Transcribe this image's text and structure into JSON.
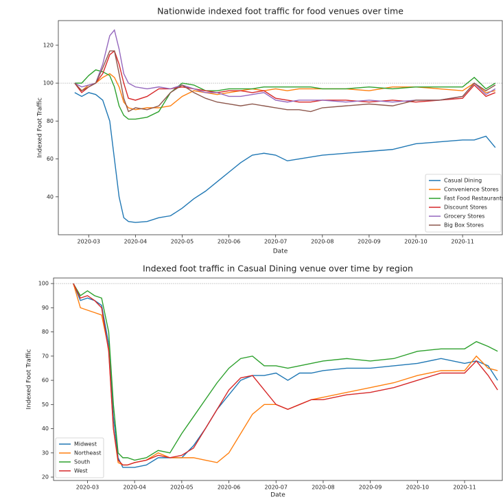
{
  "chart_data": [
    {
      "type": "line",
      "title": "Nationwide indexed foot traffic for food venues over time",
      "x_label": "Date",
      "y_label": "Indexed Foot Traffic",
      "x": [
        2.7,
        2.85,
        3.0,
        3.15,
        3.3,
        3.45,
        3.55,
        3.65,
        3.75,
        3.85,
        4.0,
        4.25,
        4.5,
        4.75,
        5.0,
        5.25,
        5.5,
        5.75,
        6.0,
        6.25,
        6.5,
        6.75,
        7.0,
        7.25,
        7.5,
        7.75,
        8.0,
        8.5,
        9.0,
        9.5,
        10.0,
        10.5,
        11.0,
        11.25,
        11.5,
        11.7
      ],
      "xlim": [
        2.35,
        11.85
      ],
      "xticks": [
        {
          "value": 3,
          "label": "2020-03"
        },
        {
          "value": 4,
          "label": "2020-04"
        },
        {
          "value": 5,
          "label": "2020-05"
        },
        {
          "value": 6,
          "label": "2020-06"
        },
        {
          "value": 7,
          "label": "2020-07"
        },
        {
          "value": 8,
          "label": "2020-08"
        },
        {
          "value": 9,
          "label": "2020-09"
        },
        {
          "value": 10,
          "label": "2020-10"
        },
        {
          "value": 11,
          "label": "2020-11"
        }
      ],
      "ylim": [
        20,
        133
      ],
      "yticks": [
        40,
        60,
        80,
        100,
        120
      ],
      "reference_line": 100,
      "legend": "lower right",
      "series": [
        {
          "name": "Casual Dining",
          "color": "#1f77b4",
          "values": [
            95,
            93,
            95,
            94,
            91,
            80,
            60,
            40,
            29,
            27,
            26.5,
            27,
            29,
            30,
            34,
            39,
            43,
            48,
            53,
            58,
            62,
            63,
            62,
            59,
            60,
            61,
            62,
            63,
            64,
            65,
            68,
            69,
            70,
            70,
            72,
            66
          ]
        },
        {
          "name": "Convenience Stores",
          "color": "#ff7f0e",
          "values": [
            100,
            96,
            99,
            100,
            103,
            105,
            103,
            98,
            90,
            87,
            86,
            87,
            87,
            88,
            93,
            96,
            95,
            94,
            95,
            96,
            97,
            96,
            97,
            96,
            97,
            97,
            97,
            97,
            96,
            98,
            98,
            97,
            96,
            100,
            95,
            96
          ]
        },
        {
          "name": "Fast Food Restaurants",
          "color": "#2ca02c",
          "values": [
            100,
            100,
            104,
            107,
            106,
            104,
            98,
            88,
            83,
            81,
            81,
            82,
            85,
            95,
            100,
            99,
            96,
            96,
            97,
            97,
            97,
            98,
            98,
            98,
            98,
            98,
            97,
            97,
            98,
            97,
            98,
            98,
            98,
            103,
            97,
            100
          ]
        },
        {
          "name": "Discount Stores",
          "color": "#d62728",
          "values": [
            100,
            95,
            98,
            100,
            105,
            115,
            117,
            110,
            100,
            92,
            91,
            93,
            97,
            97,
            98,
            97,
            96,
            95,
            96,
            96,
            95,
            96,
            92,
            91,
            90,
            90,
            91,
            91,
            90,
            91,
            90,
            91,
            92,
            99,
            93,
            95
          ]
        },
        {
          "name": "Grocery Stores",
          "color": "#9467bd",
          "values": [
            100,
            98,
            99,
            100,
            110,
            125,
            128,
            118,
            105,
            100,
            98,
            97,
            98,
            97,
            99,
            97,
            95,
            95,
            93,
            93,
            94,
            95,
            91,
            90,
            91,
            91,
            91,
            90,
            91,
            90,
            91,
            91,
            93,
            100,
            94,
            97
          ]
        },
        {
          "name": "Big Box Stores",
          "color": "#8c564b",
          "values": [
            100,
            96,
            98,
            100,
            108,
            117,
            117,
            105,
            92,
            85,
            87,
            86,
            88,
            95,
            99,
            95,
            92,
            90,
            89,
            88,
            89,
            88,
            87,
            86,
            86,
            85,
            87,
            88,
            89,
            88,
            91,
            91,
            93,
            100,
            96,
            99
          ]
        }
      ]
    },
    {
      "type": "line",
      "title": "Indexed foot traffic in Casual Dining venue over time by region",
      "x_label": "Date",
      "y_label": "Indexed Foot Traffic",
      "x": [
        2.7,
        2.85,
        3.0,
        3.15,
        3.3,
        3.45,
        3.55,
        3.65,
        3.75,
        3.85,
        4.0,
        4.25,
        4.5,
        4.75,
        5.0,
        5.25,
        5.5,
        5.75,
        6.0,
        6.25,
        6.5,
        6.75,
        7.0,
        7.25,
        7.5,
        7.75,
        8.0,
        8.5,
        9.0,
        9.5,
        10.0,
        10.5,
        11.0,
        11.25,
        11.5,
        11.7
      ],
      "xlim": [
        2.28,
        11.8
      ],
      "xticks": [
        {
          "value": 3,
          "label": "2020-03"
        },
        {
          "value": 4,
          "label": "2020-04"
        },
        {
          "value": 5,
          "label": "2020-05"
        },
        {
          "value": 6,
          "label": "2020-06"
        },
        {
          "value": 7,
          "label": "2020-07"
        },
        {
          "value": 8,
          "label": "2020-08"
        },
        {
          "value": 9,
          "label": "2020-09"
        },
        {
          "value": 10,
          "label": "2020-10"
        },
        {
          "value": 11,
          "label": "2020-11"
        }
      ],
      "ylim": [
        18.6,
        102.3
      ],
      "yticks": [
        20,
        30,
        40,
        50,
        60,
        70,
        80,
        90,
        100
      ],
      "reference_line": 100,
      "legend": "lower left",
      "series": [
        {
          "name": "Midwest",
          "color": "#1f77b4",
          "values": [
            100,
            93,
            94,
            93,
            91,
            75,
            45,
            28,
            24,
            24,
            24,
            25,
            28,
            28,
            28,
            33,
            40,
            48,
            54,
            60,
            62,
            62,
            63,
            60,
            63,
            63,
            64,
            65,
            65,
            66,
            67,
            69,
            67,
            68,
            66,
            60
          ]
        },
        {
          "name": "Northeast",
          "color": "#ff7f0e",
          "values": [
            100,
            90,
            89,
            88,
            87,
            73,
            40,
            26,
            25,
            25,
            26,
            27,
            30,
            28,
            28,
            28,
            27,
            26,
            30,
            38,
            46,
            50,
            50,
            48,
            50,
            52,
            53,
            55,
            57,
            59,
            62,
            64,
            64,
            70,
            65,
            64
          ]
        },
        {
          "name": "South",
          "color": "#2ca02c",
          "values": [
            100,
            95,
            97,
            95,
            94,
            80,
            50,
            30,
            28,
            28,
            27,
            28,
            31,
            30,
            38,
            45,
            52,
            59,
            65,
            69,
            70,
            66,
            66,
            65,
            66,
            67,
            68,
            69,
            68,
            69,
            72,
            73,
            73,
            76,
            74,
            72
          ]
        },
        {
          "name": "West",
          "color": "#d62728",
          "values": [
            100,
            94,
            95,
            93,
            90,
            72,
            40,
            27,
            25,
            25,
            26,
            27,
            29,
            28,
            29,
            32,
            40,
            48,
            56,
            61,
            62,
            56,
            50,
            48,
            50,
            52,
            52,
            54,
            55,
            57,
            60,
            63,
            63,
            68,
            62,
            56
          ]
        }
      ]
    }
  ]
}
